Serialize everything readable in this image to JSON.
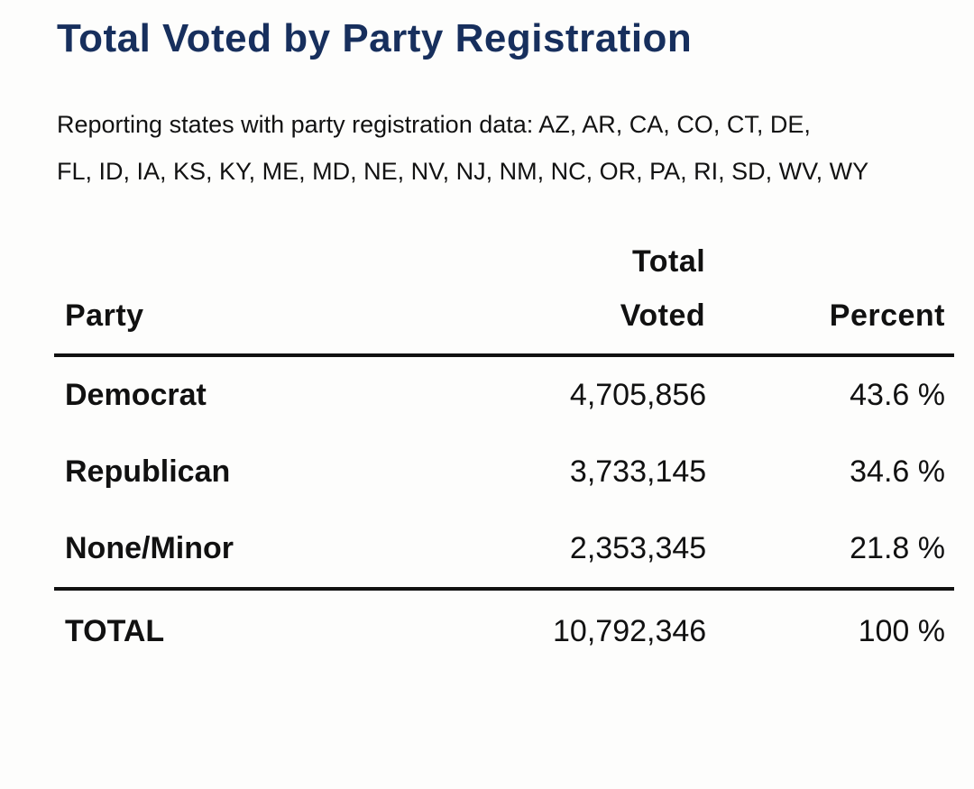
{
  "title": "Total Voted by Party Registration",
  "subtitle": {
    "lines": [
      "Reporting states with party registration data: AZ, AR, CA, CO, CT, DE,",
      "FL, ID, IA, KS, KY, ME, MD, NE, NV, NJ, NM, NC, OR, PA, RI, SD, WV, WY"
    ]
  },
  "colors": {
    "title_navy": "#172f5d",
    "body_text": "#111111",
    "rule": "#111111",
    "background": "#fdfdfc"
  },
  "table": {
    "headers": {
      "party": "Party",
      "voted_line1": "Total",
      "voted_line2": "Voted",
      "percent": "Percent"
    },
    "rows": [
      {
        "party": "Democrat",
        "total_voted": "4,705,856",
        "percent": "43.6 %"
      },
      {
        "party": "Republican",
        "total_voted": "3,733,145",
        "percent": "34.6 %"
      },
      {
        "party": "None/Minor",
        "total_voted": "2,353,345",
        "percent": "21.8 %"
      }
    ],
    "total_row": {
      "party": "TOTAL",
      "total_voted": "10,792,346",
      "percent": "100 %"
    }
  },
  "chart_data": {
    "type": "table",
    "title": "Total Voted by Party Registration",
    "note": "Reporting states with party registration data: AZ, AR, CA, CO, CT, DE, FL, ID, IA, KS, KY, ME, MD, NE, NV, NJ, NM, NC, OR, PA, RI, SD, WV, WY",
    "columns": [
      "Party",
      "Total Voted",
      "Percent"
    ],
    "rows": [
      {
        "party": "Democrat",
        "total_voted": 4705856,
        "percent": 43.6
      },
      {
        "party": "Republican",
        "total_voted": 3733145,
        "percent": 34.6
      },
      {
        "party": "None/Minor",
        "total_voted": 2353345,
        "percent": 21.8
      }
    ],
    "total": {
      "party": "TOTAL",
      "total_voted": 10792346,
      "percent": 100
    }
  }
}
